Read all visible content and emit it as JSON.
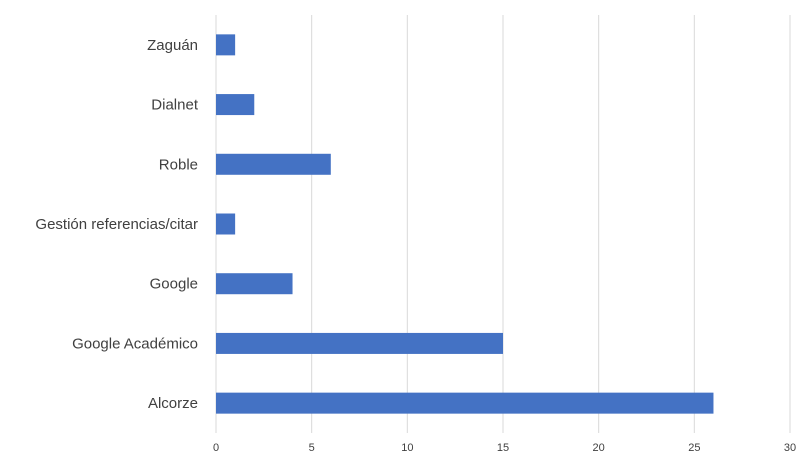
{
  "chart_data": {
    "type": "bar",
    "orientation": "horizontal",
    "categories": [
      "Alcorze",
      "Google Académico",
      "Google",
      "Gestión referencias/citar",
      "Roble",
      "Dialnet",
      "Zaguán"
    ],
    "values": [
      26,
      15,
      4,
      1,
      6,
      2,
      1
    ],
    "xlim": [
      0,
      30
    ],
    "xticks": [
      0,
      5,
      10,
      15,
      20,
      25,
      30
    ],
    "grid": true,
    "legend": "none",
    "title": "",
    "xlabel": "",
    "ylabel": "",
    "bar_color": "#4472C4"
  }
}
